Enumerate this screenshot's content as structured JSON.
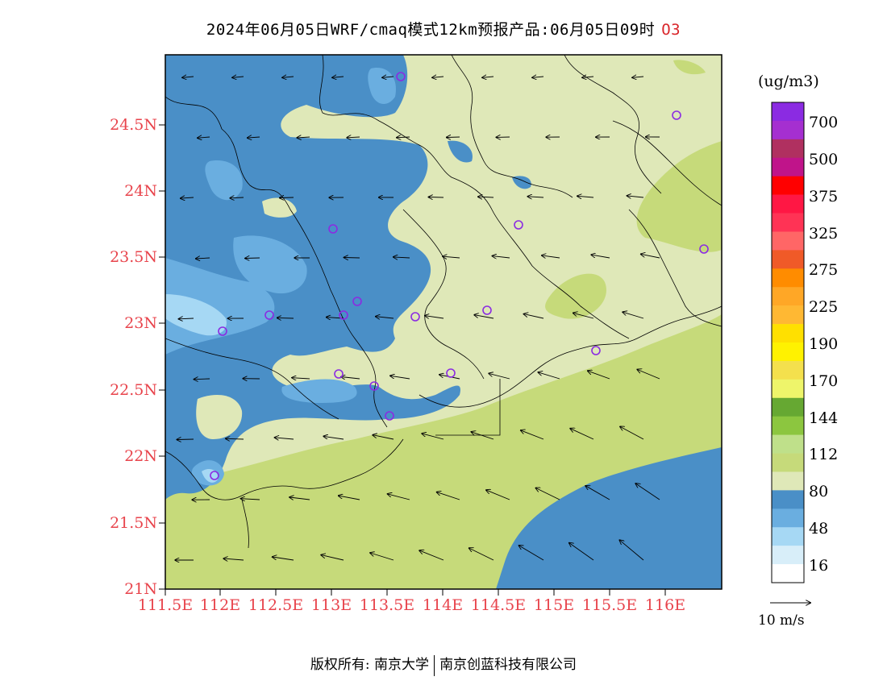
{
  "title": {
    "main": "2024年06月05日WRF/cmaq模式12km预报产品:06月05日09时",
    "species": "O3"
  },
  "axes": {
    "lat_labels": [
      "24.5N",
      "24N",
      "23.5N",
      "23N",
      "22.5N",
      "22N",
      "21.5N",
      "21N"
    ],
    "lon_labels": [
      "111.5E",
      "112E",
      "112.5E",
      "113E",
      "113.5E",
      "114E",
      "114.5E",
      "115E",
      "115.5E",
      "116E"
    ]
  },
  "colorbar": {
    "unit": "(ug/m3)",
    "labels": [
      "700",
      "500",
      "375",
      "325",
      "275",
      "225",
      "190",
      "170",
      "144",
      "112",
      "80",
      "48",
      "16"
    ],
    "colors_top_to_bottom": [
      "#8b2be2",
      "#a52fd0",
      "#b03060",
      "#c0148a",
      "#ff0000",
      "#ff1744",
      "#ff3355",
      "#ff6666",
      "#f05a28",
      "#ff8c00",
      "#ffa726",
      "#ffb833",
      "#ffe000",
      "#fff200",
      "#f4e04d",
      "#eef56a",
      "#66a832",
      "#8cc63f",
      "#bfe08a",
      "#c6da7a",
      "#dfe8b8",
      "#4a8fc7",
      "#6aaee0",
      "#a6d8f4",
      "#d8eef9",
      "#ffffff"
    ]
  },
  "vector_reference": "10 m/s",
  "footer": {
    "left": "版权所有: 南京大学",
    "right": "南京创蓝科技有限公司"
  }
}
